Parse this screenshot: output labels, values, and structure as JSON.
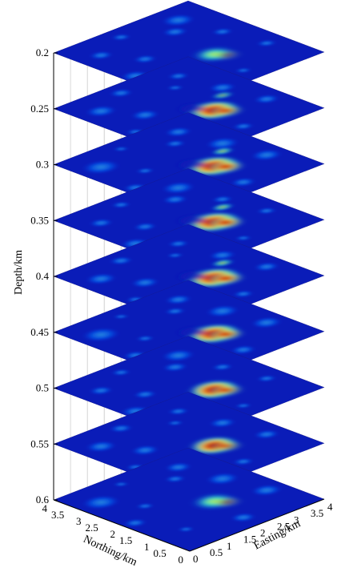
{
  "chart_data": {
    "type": "heatmap",
    "subtype": "3d-stacked-depth-slices",
    "title": "",
    "colormap": "jet",
    "colors": {
      "background_slice": "#0a1cb8",
      "low": "#00008f",
      "high": "#800000"
    },
    "zlabel": "Depth/km",
    "xlabel": "Easting/km",
    "ylabel": "Northing/km",
    "z_ticks": [
      "0.2",
      "0.25",
      "0.3",
      "0.35",
      "0.4",
      "0.45",
      "0.5",
      "0.55",
      "0.6"
    ],
    "x_ticks": [
      "0",
      "0.5",
      "1",
      "1.5",
      "2",
      "2.5",
      "3",
      "3.5",
      "4"
    ],
    "y_ticks": [
      "0",
      "0.5",
      "1",
      "1.5",
      "2",
      "2.5",
      "3",
      "3.5",
      "4"
    ],
    "xlim": [
      0,
      4
    ],
    "ylim": [
      0,
      4
    ],
    "zlim": [
      0.2,
      0.6
    ],
    "z_reversed": true,
    "grid": true,
    "slices": [
      {
        "depth": 0.2,
        "anomaly_intensity": 0.45
      },
      {
        "depth": 0.25,
        "anomaly_intensity": 0.85
      },
      {
        "depth": 0.3,
        "anomaly_intensity": 1.0
      },
      {
        "depth": 0.35,
        "anomaly_intensity": 1.0
      },
      {
        "depth": 0.4,
        "anomaly_intensity": 1.0
      },
      {
        "depth": 0.45,
        "anomaly_intensity": 0.95
      },
      {
        "depth": 0.5,
        "anomaly_intensity": 0.85
      },
      {
        "depth": 0.55,
        "anomaly_intensity": 0.7
      },
      {
        "depth": 0.6,
        "anomaly_intensity": 0.55
      }
    ]
  }
}
